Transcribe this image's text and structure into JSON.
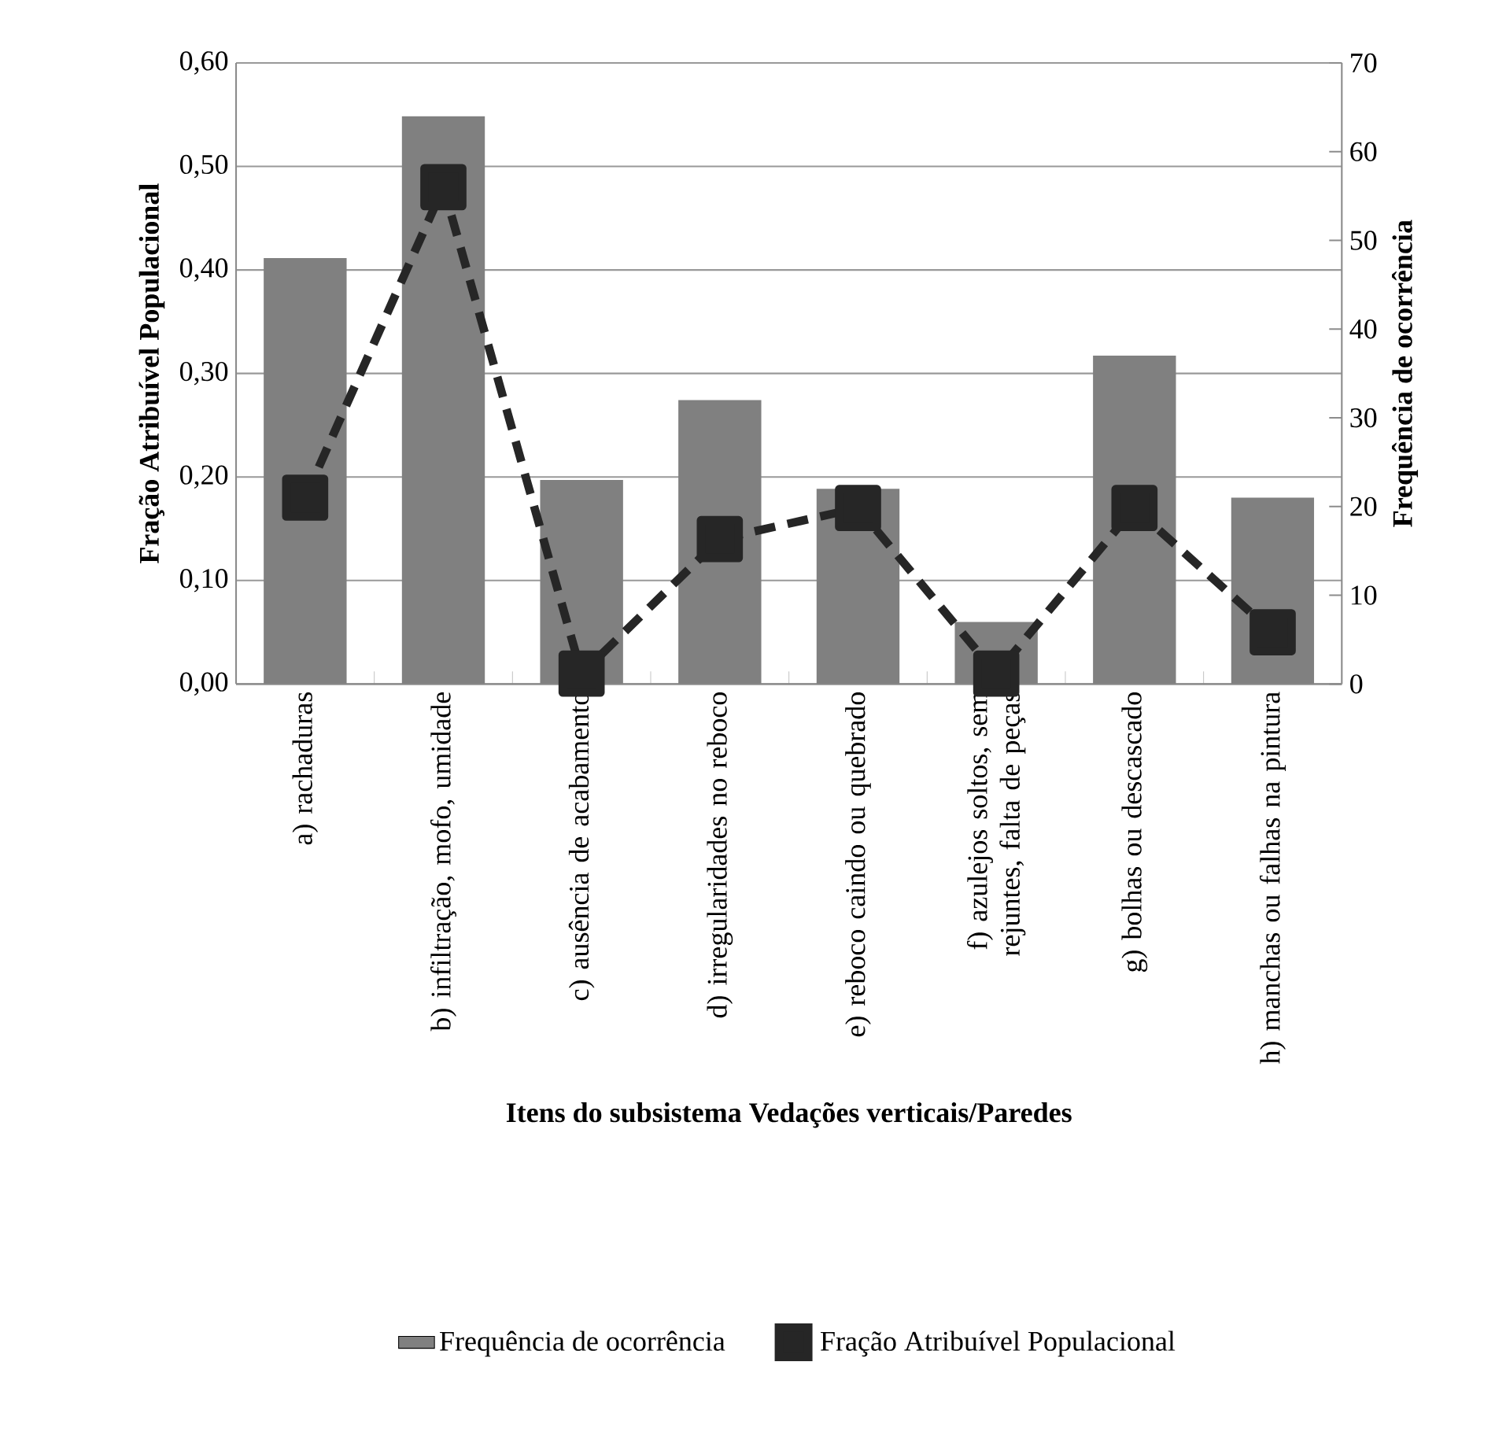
{
  "chart_data": {
    "type": "bar",
    "xlabel": "Itens do subsistema Vedações verticais/Paredes",
    "ylabel": "Fração Atribuível Populacional",
    "y2label": "Frequência de ocorrência",
    "categories": [
      "a) rachaduras",
      "b) infiltração, mofo, umidade",
      "c) ausência de acabamento",
      "d) irregularidades no reboco",
      "e) reboco caindo ou quebrado",
      "f) azulejos soltos, sem rejuntes, falta de peças",
      "g) bolhas ou descascado",
      "h) manchas ou falhas na pintura"
    ],
    "series": [
      {
        "name": "Frequência de ocorrência",
        "axis": "y2",
        "color": "#808080",
        "values": [
          48,
          64,
          23,
          32,
          22,
          7,
          37,
          21
        ]
      },
      {
        "name": "Fração Atribuível Populacional",
        "type": "line",
        "color": "#262626",
        "values": [
          0.18,
          0.48,
          0.01,
          0.14,
          0.17,
          0.01,
          0.17,
          0.05
        ]
      }
    ],
    "ylim": [
      0,
      0.6
    ],
    "yticks": [
      {
        "value": 0,
        "label": "0,00"
      },
      {
        "value": 0.1,
        "label": "0,10"
      },
      {
        "value": 0.2,
        "label": "0,20"
      },
      {
        "value": 0.3,
        "label": "0,30"
      },
      {
        "value": 0.4,
        "label": "0,40"
      },
      {
        "value": 0.5,
        "label": "0,50"
      },
      {
        "value": 0.6,
        "label": "0,60"
      }
    ],
    "y2lim": [
      0,
      70
    ],
    "y2ticks": [
      0,
      10,
      20,
      30,
      40,
      50,
      60,
      70
    ],
    "grid": "y",
    "legend": "bottom",
    "marker": "square",
    "line_style": "dashed"
  }
}
